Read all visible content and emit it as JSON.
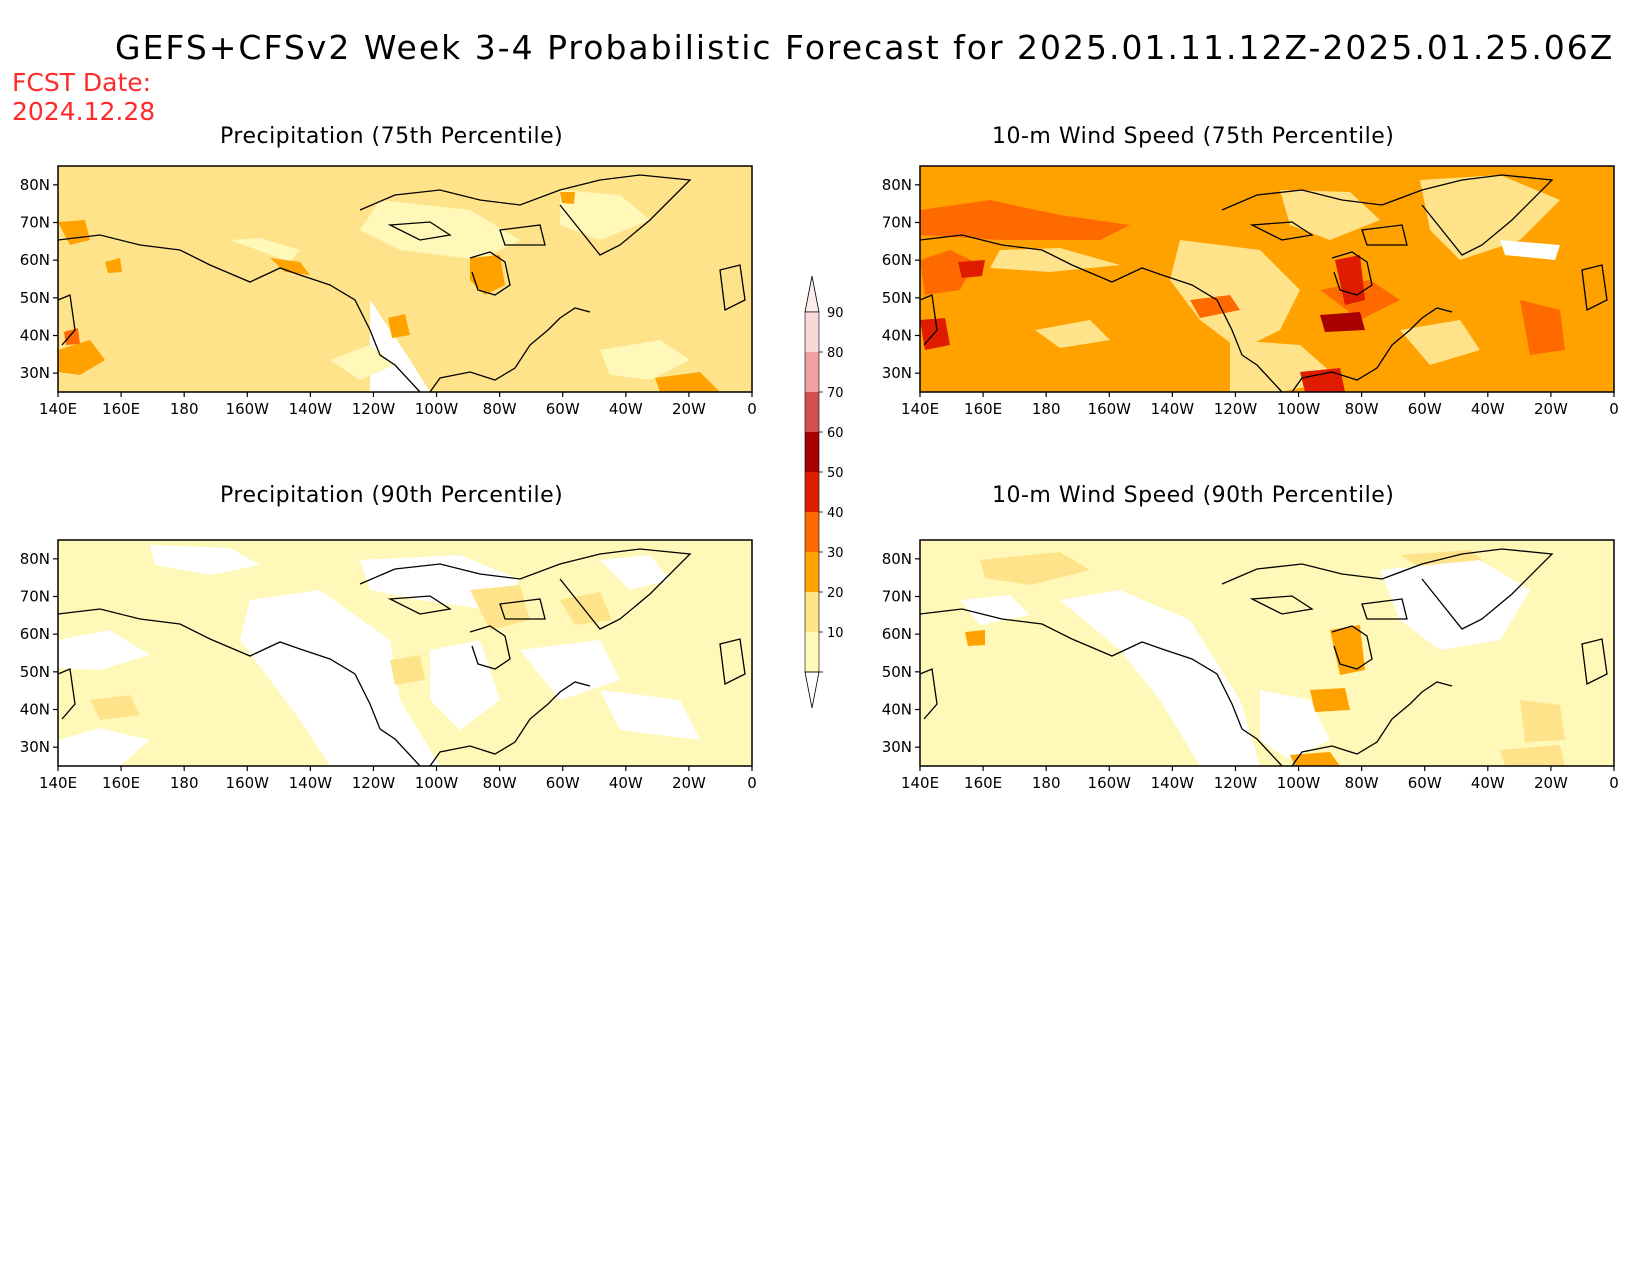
{
  "title": "GEFS+CFSv2 Week 3-4 Probabilistic Forecast for 2025.01.11.12Z-2025.01.25.06Z",
  "fcst_label": "FCST Date:",
  "fcst_date": "2024.12.28",
  "lon_ticks": [
    "140E",
    "160E",
    "180",
    "160W",
    "140W",
    "120W",
    "100W",
    "80W",
    "60W",
    "40W",
    "20W",
    "0"
  ],
  "lat_ticks": [
    "80N",
    "70N",
    "60N",
    "50N",
    "40N",
    "30N"
  ],
  "panels": [
    {
      "title": "Precipitation (75th Percentile)"
    },
    {
      "title": "10-m Wind Speed (75th Percentile)"
    },
    {
      "title": "Precipitation (90th Percentile)"
    },
    {
      "title": "10-m Wind Speed (90th Percentile)"
    }
  ],
  "colorbar": {
    "labels": [
      "10",
      "20",
      "30",
      "40",
      "50",
      "60",
      "70",
      "80",
      "90"
    ],
    "colors": [
      "#fff8b8",
      "#ffe38a",
      "#ffa200",
      "#ff6a00",
      "#e01c00",
      "#a80000",
      "#d45050",
      "#f0a0a0",
      "#fad8d8"
    ]
  }
}
